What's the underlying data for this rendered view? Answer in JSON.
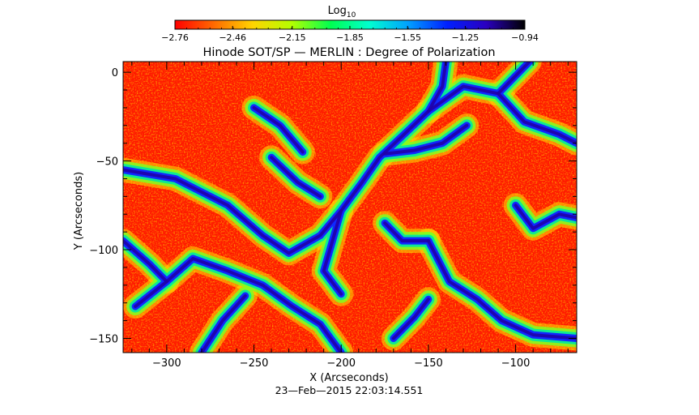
{
  "chart_data": {
    "type": "heatmap",
    "title": "Hinode SOT/SP — MERLIN : Degree of Polarization",
    "xlabel": "X (Arcseconds)",
    "ylabel": "Y (Arcseconds)",
    "timestamp": "23—Feb—2015 22:03:14.551",
    "xlim": [
      -325,
      -65
    ],
    "ylim": [
      -158,
      6
    ],
    "x_ticks": [
      -300,
      -250,
      -200,
      -150,
      -100
    ],
    "x_tick_labels": [
      "−300",
      "−250",
      "−200",
      "−150",
      "−100"
    ],
    "y_ticks": [
      0,
      -50,
      -100,
      -150
    ],
    "y_tick_labels": [
      "0",
      "−50",
      "−100",
      "−150"
    ],
    "colorbar": {
      "label": "Log",
      "label_subscript": "10",
      "range": [
        -2.76,
        -0.94
      ],
      "tick_values": [
        -2.76,
        -2.46,
        -2.15,
        -1.85,
        -1.55,
        -1.25,
        -0.94
      ],
      "tick_labels": [
        "−2.76",
        "−2.46",
        "−2.15",
        "−1.85",
        "−1.55",
        "−1.25",
        "−0.94"
      ],
      "colors": [
        "#ff0000",
        "#ff6a00",
        "#ffd400",
        "#b4ff00",
        "#00ff50",
        "#00ffd0",
        "#00a0ff",
        "#0020ff",
        "#2a00c0",
        "#000000"
      ]
    },
    "network_lanes_xy": [
      [
        [
          -325,
          -55
        ],
        [
          -295,
          -60
        ],
        [
          -265,
          -75
        ],
        [
          -245,
          -92
        ],
        [
          -230,
          -102
        ],
        [
          -212,
          -92
        ],
        [
          -200,
          -78
        ],
        [
          -188,
          -62
        ],
        [
          -178,
          -48
        ],
        [
          -165,
          -36
        ],
        [
          -150,
          -22
        ],
        [
          -130,
          -8
        ],
        [
          -110,
          -12
        ],
        [
          -92,
          6
        ]
      ],
      [
        [
          -318,
          -132
        ],
        [
          -300,
          -118
        ],
        [
          -285,
          -105
        ],
        [
          -265,
          -112
        ],
        [
          -245,
          -120
        ],
        [
          -228,
          -132
        ],
        [
          -212,
          -142
        ],
        [
          -200,
          -158
        ]
      ],
      [
        [
          -280,
          -158
        ],
        [
          -268,
          -140
        ],
        [
          -255,
          -126
        ]
      ],
      [
        [
          -200,
          -78
        ],
        [
          -205,
          -95
        ],
        [
          -210,
          -112
        ],
        [
          -200,
          -125
        ]
      ],
      [
        [
          -175,
          -46
        ],
        [
          -158,
          -44
        ],
        [
          -142,
          -40
        ],
        [
          -128,
          -30
        ]
      ],
      [
        [
          -150,
          -22
        ],
        [
          -142,
          -8
        ],
        [
          -140,
          6
        ]
      ],
      [
        [
          -110,
          -12
        ],
        [
          -95,
          -28
        ],
        [
          -75,
          -35
        ],
        [
          -65,
          -40
        ]
      ],
      [
        [
          -150,
          -95
        ],
        [
          -138,
          -118
        ],
        [
          -122,
          -128
        ],
        [
          -108,
          -140
        ],
        [
          -90,
          -148
        ],
        [
          -65,
          -150
        ]
      ],
      [
        [
          -175,
          -85
        ],
        [
          -165,
          -95
        ],
        [
          -150,
          -95
        ]
      ],
      [
        [
          -100,
          -75
        ],
        [
          -90,
          -88
        ],
        [
          -75,
          -80
        ],
        [
          -65,
          -82
        ]
      ],
      [
        [
          -240,
          -48
        ],
        [
          -225,
          -62
        ],
        [
          -212,
          -70
        ]
      ],
      [
        [
          -325,
          -95
        ],
        [
          -310,
          -108
        ],
        [
          -300,
          -118
        ]
      ],
      [
        [
          -250,
          -20
        ],
        [
          -235,
          -30
        ],
        [
          -222,
          -45
        ]
      ],
      [
        [
          -170,
          -150
        ],
        [
          -158,
          -138
        ],
        [
          -150,
          -128
        ]
      ]
    ]
  }
}
